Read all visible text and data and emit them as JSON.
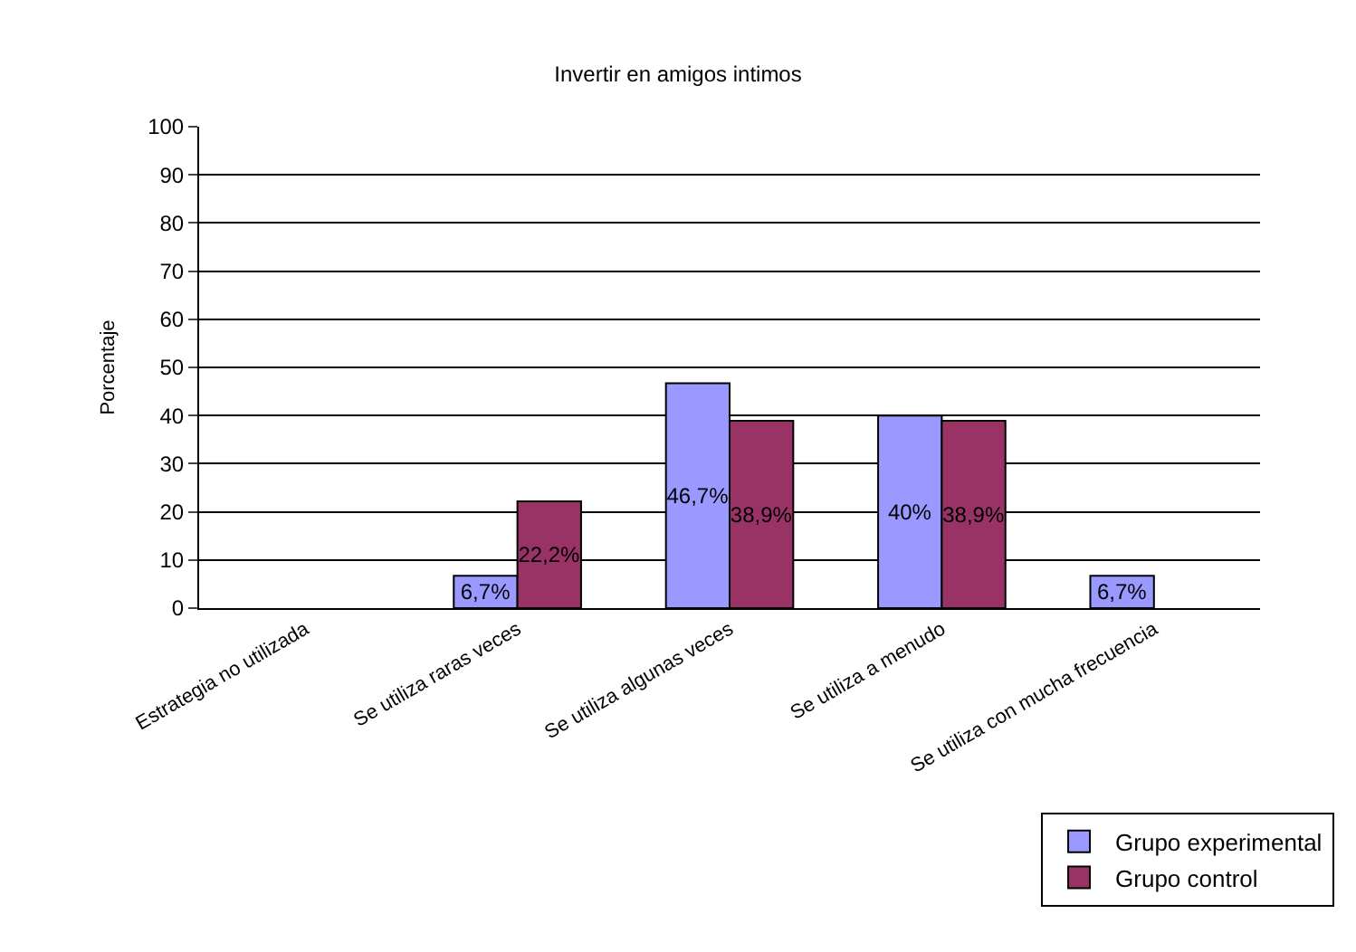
{
  "chart_data": {
    "type": "bar",
    "title": "Invertir en amigos intimos",
    "ylabel": "Porcentaje",
    "categories": [
      "Estrategia no utilizada",
      "Se utiliza raras veces",
      "Se utiliza algunas veces",
      "Se utiliza a menudo",
      "Se utiliza con mucha frecuencia"
    ],
    "series": [
      {
        "name": "Grupo experimental",
        "color": "#9999ff",
        "values": [
          null,
          6.7,
          46.7,
          40,
          6.7
        ],
        "value_labels": [
          null,
          "6,7%",
          "46,7%",
          "40%",
          "6,7%"
        ]
      },
      {
        "name": "Grupo control",
        "color": "#993366",
        "values": [
          null,
          22.2,
          38.9,
          38.9,
          null
        ],
        "value_labels": [
          null,
          "22,2%",
          "38,9%",
          "38,9%",
          null
        ]
      }
    ],
    "ylim": [
      0,
      100
    ],
    "yticks": [
      0,
      10,
      20,
      30,
      40,
      50,
      60,
      70,
      80,
      90,
      100
    ],
    "grid": "y",
    "legend": "bottom right"
  }
}
